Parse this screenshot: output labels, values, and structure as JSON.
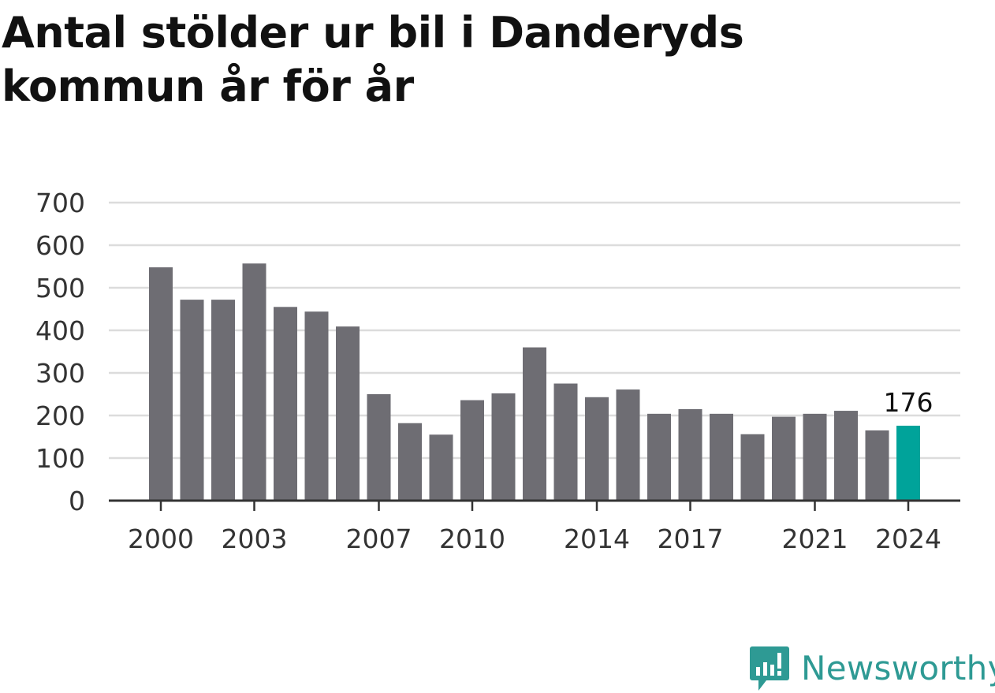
{
  "title": "Antal stölder ur bil i Danderyds kommun år för år",
  "brand": {
    "name": "Newsworthy",
    "icon": "newsworthy-logo-icon",
    "color": "#2e9a94"
  },
  "colors": {
    "bar": "#6e6d73",
    "highlight": "#00a39a",
    "grid": "#dcdcdc",
    "axis": "#333333",
    "text": "#333333"
  },
  "chart_data": {
    "type": "bar",
    "categories": [
      "2000",
      "2001",
      "2002",
      "2003",
      "2004",
      "2005",
      "2006",
      "2007",
      "2008",
      "2009",
      "2010",
      "2011",
      "2012",
      "2013",
      "2014",
      "2015",
      "2016",
      "2017",
      "2018",
      "2019",
      "2020",
      "2021",
      "2022",
      "2023",
      "2024"
    ],
    "values": [
      548,
      472,
      472,
      557,
      455,
      444,
      409,
      250,
      182,
      155,
      236,
      252,
      360,
      275,
      243,
      261,
      204,
      215,
      204,
      156,
      197,
      204,
      211,
      165,
      176
    ],
    "highlight_index": 24,
    "data_label": "176",
    "ylim": [
      0,
      700
    ],
    "y_ticks": [
      0,
      100,
      200,
      300,
      400,
      500,
      600,
      700
    ],
    "x_tick_labels": [
      "2000",
      "2003",
      "2007",
      "2010",
      "2014",
      "2017",
      "2021",
      "2024"
    ],
    "grid": true,
    "legend": "none",
    "title": "Antal stölder ur bil i Danderyds kommun år för år",
    "xlabel": "",
    "ylabel": ""
  }
}
